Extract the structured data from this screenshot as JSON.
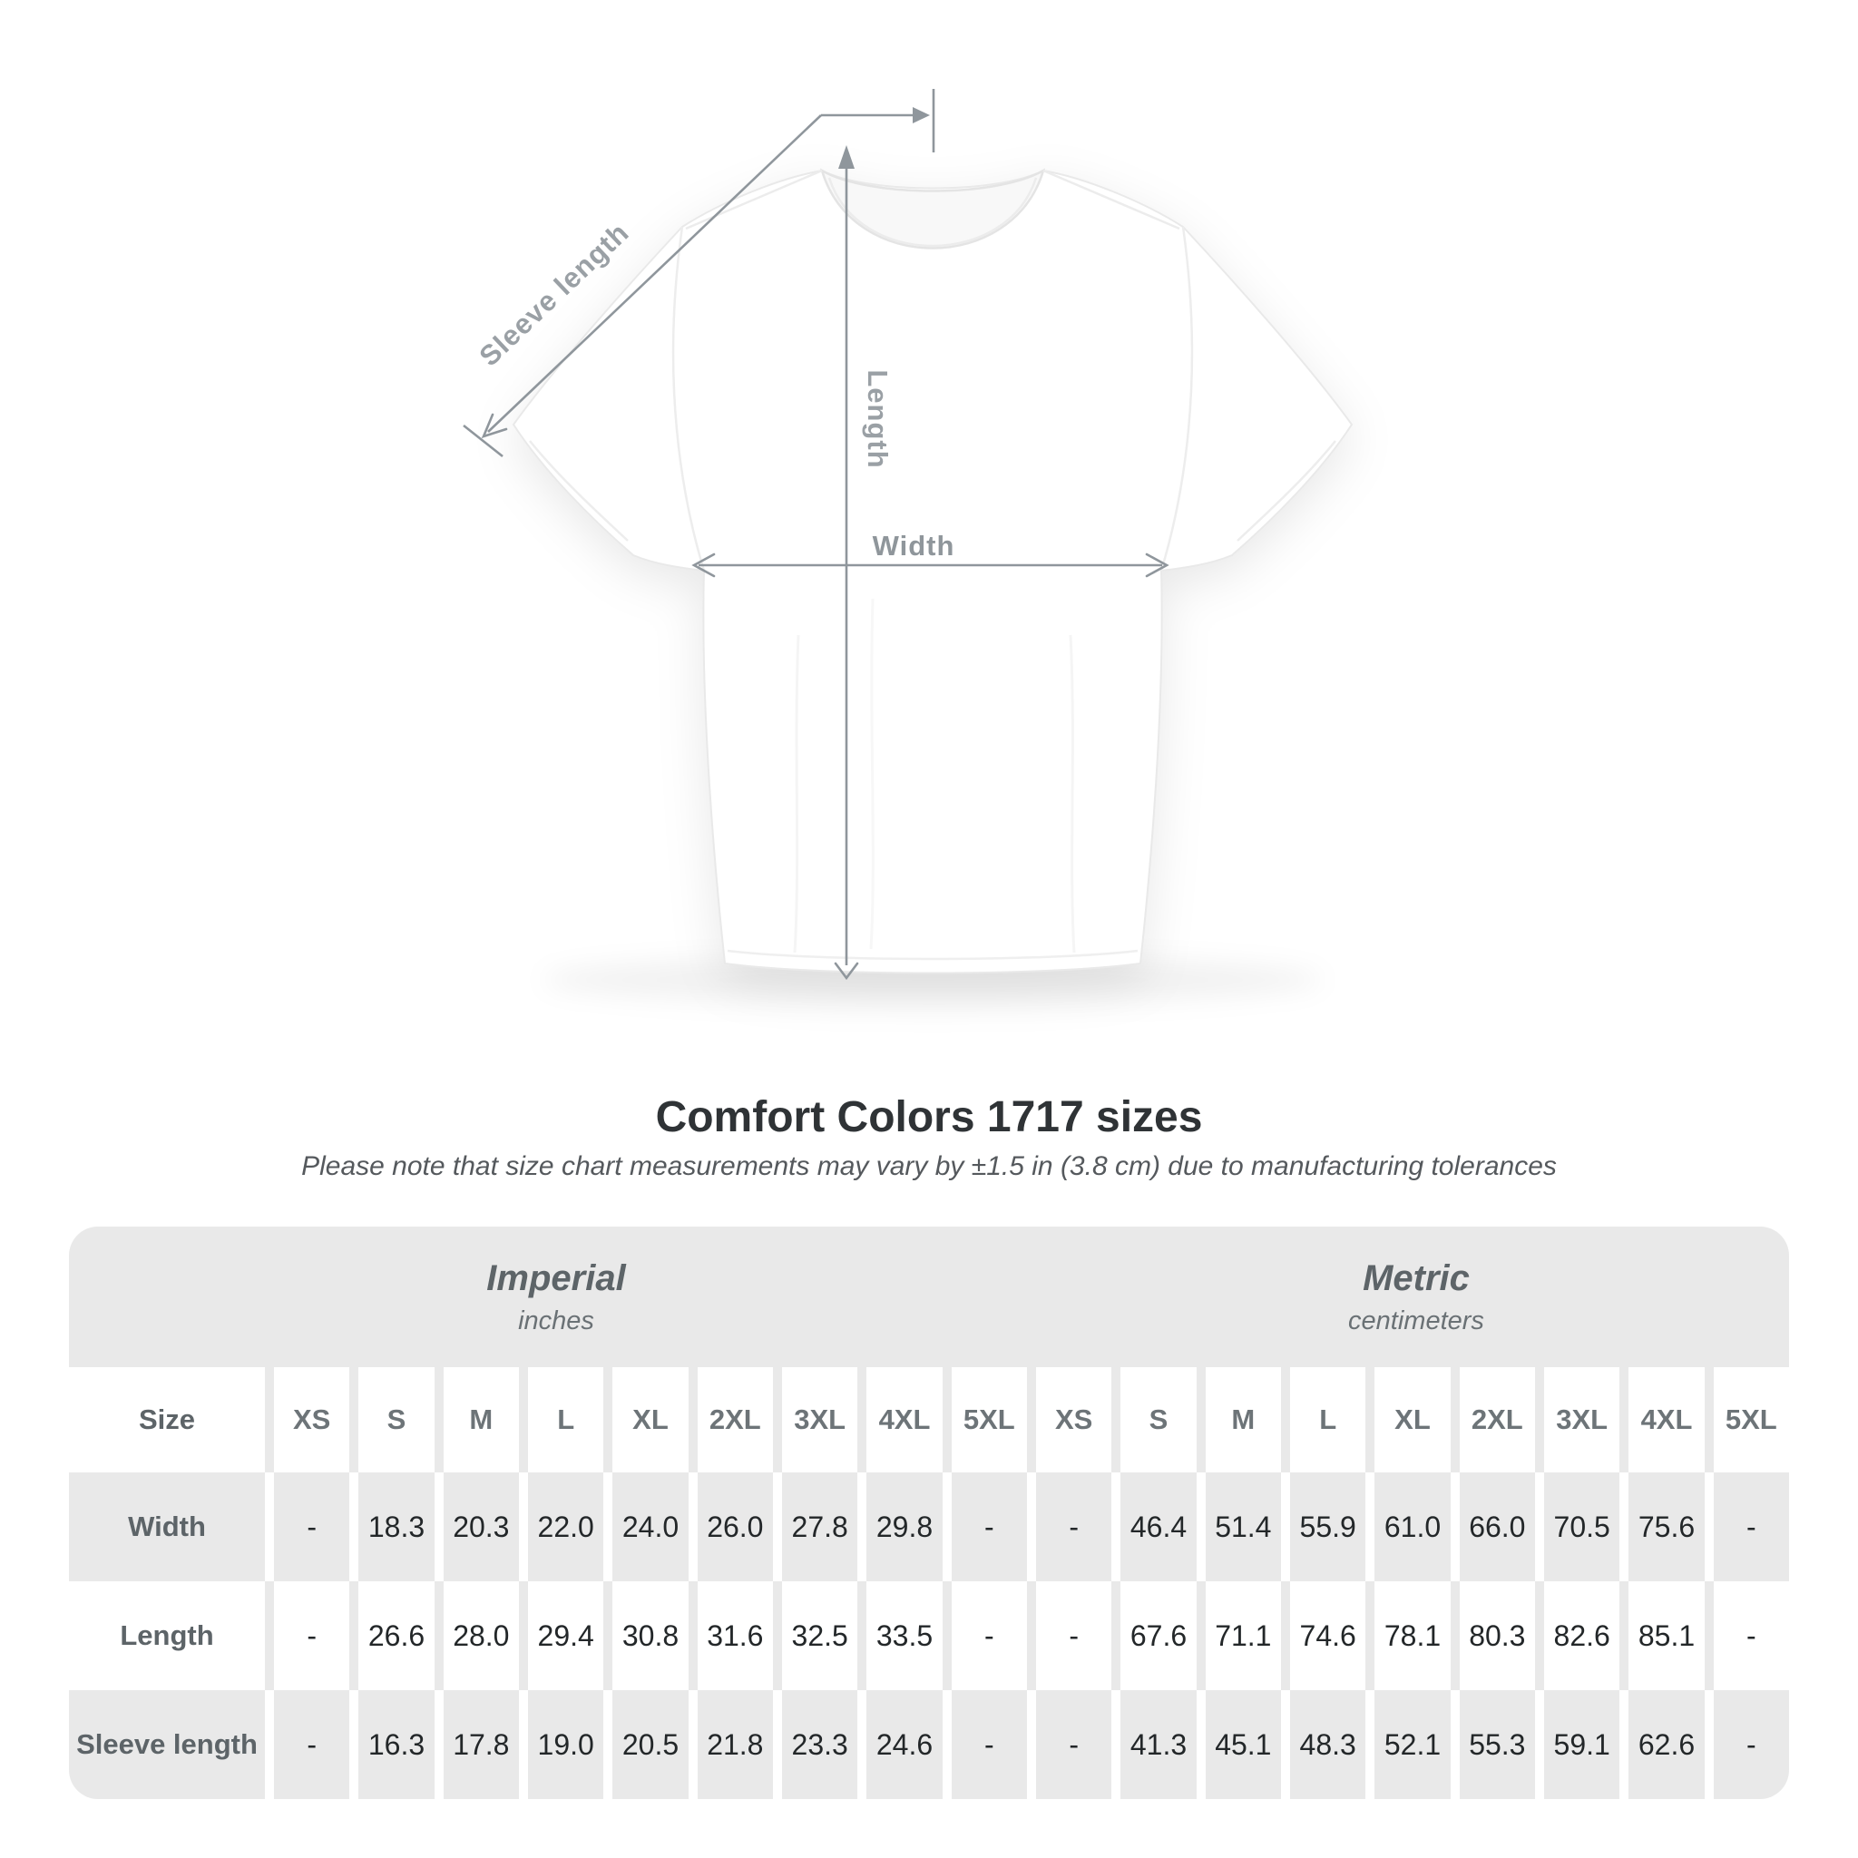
{
  "diagram": {
    "sleeve_label": "Sleeve length",
    "length_label": "Length",
    "width_label": "Width",
    "arrow_color": "#8f969c",
    "label_color": "#9aa0a5",
    "shirt_color": "#ffffff"
  },
  "title": "Comfort Colors 1717 sizes",
  "subtitle": "Please note that size chart measurements may vary by ±1.5 in (3.8 cm) due to manufacturing tolerances",
  "table": {
    "sections": [
      {
        "title": "Imperial",
        "unit": "inches"
      },
      {
        "title": "Metric",
        "unit": "centimeters"
      }
    ],
    "size_header": "Size",
    "sizes": [
      "XS",
      "S",
      "M",
      "L",
      "XL",
      "2XL",
      "3XL",
      "4XL",
      "5XL"
    ],
    "rows": [
      {
        "label": "Width",
        "imperial": [
          "-",
          "18.3",
          "20.3",
          "22.0",
          "24.0",
          "26.0",
          "27.8",
          "29.8",
          "-"
        ],
        "metric": [
          "-",
          "46.4",
          "51.4",
          "55.9",
          "61.0",
          "66.0",
          "70.5",
          "75.6",
          "-"
        ]
      },
      {
        "label": "Length",
        "imperial": [
          "-",
          "26.6",
          "28.0",
          "29.4",
          "30.8",
          "31.6",
          "32.5",
          "33.5",
          "-"
        ],
        "metric": [
          "-",
          "67.6",
          "71.1",
          "74.6",
          "78.1",
          "80.3",
          "82.6",
          "85.1",
          "-"
        ]
      },
      {
        "label": "Sleeve length",
        "imperial": [
          "-",
          "16.3",
          "17.8",
          "19.0",
          "20.5",
          "21.8",
          "23.3",
          "24.6",
          "-"
        ],
        "metric": [
          "-",
          "41.3",
          "45.1",
          "48.3",
          "52.1",
          "55.3",
          "59.1",
          "62.6",
          "-"
        ]
      }
    ],
    "colors": {
      "stripe": "#e9e9e9",
      "value_text": "#232729",
      "label_text": "#5d6468"
    }
  }
}
